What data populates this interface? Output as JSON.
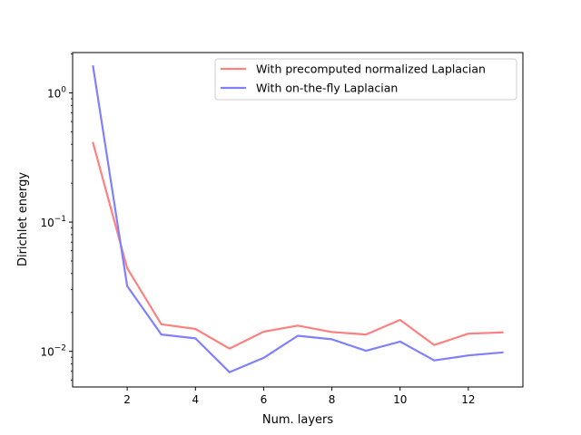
{
  "chart_data": {
    "type": "line",
    "xlabel": "Num. layers",
    "ylabel": "Dirichlet energy",
    "x": [
      1,
      2,
      3,
      4,
      5,
      6,
      7,
      8,
      9,
      10,
      11,
      12,
      13
    ],
    "xlim": [
      0.4,
      13.6
    ],
    "ylim": [
      0.0053,
      2.05
    ],
    "yscale": "log",
    "x_ticks": [
      2,
      4,
      6,
      8,
      10,
      12
    ],
    "y_ticks": [
      {
        "value": 0.01,
        "mantissa": "10",
        "exponent": "−2"
      },
      {
        "value": 0.1,
        "mantissa": "10",
        "exponent": "−1"
      },
      {
        "value": 1,
        "mantissa": "10",
        "exponent": "0"
      }
    ],
    "grid": false,
    "legend": "top-right",
    "series": [
      {
        "name": "With precomputed normalized Laplacian",
        "color": "#ff8080",
        "values": [
          0.41,
          0.044,
          0.0162,
          0.0149,
          0.0105,
          0.0142,
          0.0158,
          0.0141,
          0.0135,
          0.0175,
          0.0112,
          0.0137,
          0.014
        ]
      },
      {
        "name": "With on-the-fly Laplacian",
        "color": "#8080ff",
        "values": [
          1.6,
          0.032,
          0.0135,
          0.0126,
          0.0069,
          0.0089,
          0.0132,
          0.0124,
          0.0101,
          0.0119,
          0.0085,
          0.0093,
          0.0098
        ]
      }
    ]
  }
}
